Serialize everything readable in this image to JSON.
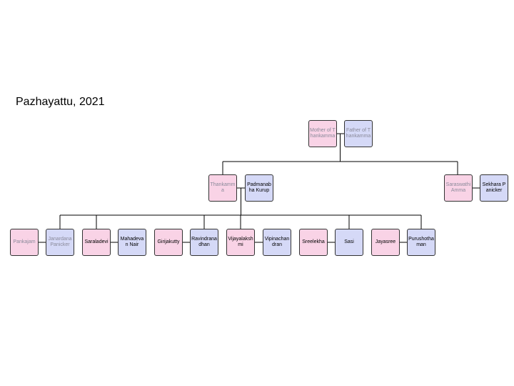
{
  "title": "Pazhayattu, 2021",
  "nodes": [
    {
      "label": "Mother of Thankamma",
      "fill": "#f9d3e6",
      "text_color": "#8a8a9a"
    },
    {
      "label": "Father of Thankamma",
      "fill": "#d5d9f7",
      "text_color": "#8a8a9a"
    },
    {
      "label": "Thankamma",
      "fill": "#f9d3e6",
      "text_color": "#8a8a9a"
    },
    {
      "label": "Padmanabha Kurup",
      "fill": "#d5d9f7",
      "text_color": "#000000"
    },
    {
      "label": "Saraswathi Amma",
      "fill": "#f9d3e6",
      "text_color": "#8a8a9a"
    },
    {
      "label": "Sekhara Panicker",
      "fill": "#d5d9f7",
      "text_color": "#000000"
    },
    {
      "label": "Pankajam",
      "fill": "#f9d3e6",
      "text_color": "#8a8a9a"
    },
    {
      "label": "Janardana Panicker",
      "fill": "#d5d9f7",
      "text_color": "#8a8a9a"
    },
    {
      "label": "Saraladevi",
      "fill": "#f9d3e6",
      "text_color": "#000000"
    },
    {
      "label": "Mahadevan Nair",
      "fill": "#d5d9f7",
      "text_color": "#000000"
    },
    {
      "label": "Girijakutty",
      "fill": "#f9d3e6",
      "text_color": "#000000"
    },
    {
      "label": "Ravindranadhan",
      "fill": "#d5d9f7",
      "text_color": "#000000"
    },
    {
      "label": "Vijayalakshmi",
      "fill": "#f9d3e6",
      "text_color": "#000000"
    },
    {
      "label": "Vipinachandran",
      "fill": "#d5d9f7",
      "text_color": "#000000"
    },
    {
      "label": "Sreelekha",
      "fill": "#f9d3e6",
      "text_color": "#000000"
    },
    {
      "label": "Sasi",
      "fill": "#d5d9f7",
      "text_color": "#000000"
    },
    {
      "label": "Jayasree",
      "fill": "#f9d3e6",
      "text_color": "#000000"
    },
    {
      "label": "Purushothaman",
      "fill": "#d5d9f7",
      "text_color": "#000000"
    }
  ]
}
